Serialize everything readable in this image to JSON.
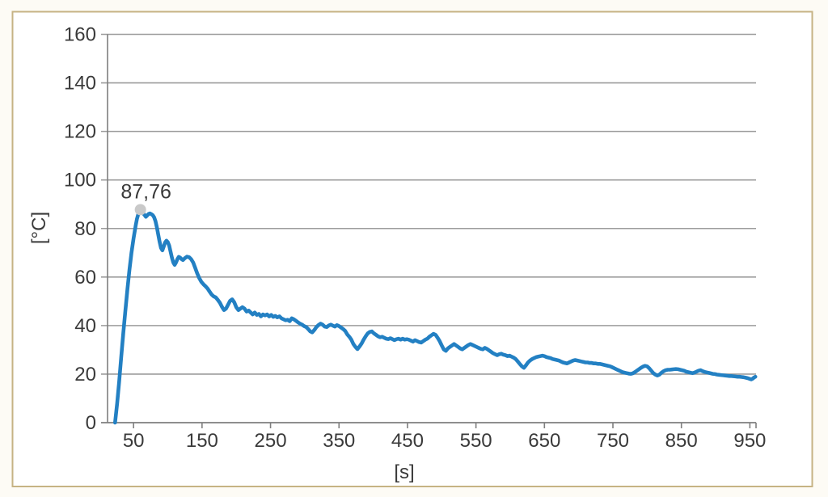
{
  "chart_data": {
    "type": "line",
    "title": "",
    "xlabel": "[s]",
    "ylabel": "[°C]",
    "xlim": [
      12,
      959
    ],
    "ylim": [
      0,
      160
    ],
    "x_ticks": [
      50,
      150,
      250,
      350,
      450,
      550,
      650,
      750,
      850,
      950
    ],
    "y_ticks": [
      0,
      20,
      40,
      60,
      80,
      100,
      120,
      140,
      160
    ],
    "grid": "horizontal",
    "legend": "none",
    "colors": {
      "line": "#2380C3",
      "marker": "#C9C9C9",
      "grid": "#9C9C9C",
      "axis": "#7F7F7F",
      "text": "#3A3A3A",
      "frame_border": "#C6B384",
      "plot_background": "#FFFFFF"
    },
    "annotation": {
      "text": "87,76",
      "t": 60,
      "value": 87.76
    },
    "series": [
      {
        "points": [
          [
            23,
            0
          ],
          [
            26,
            8
          ],
          [
            29,
            17
          ],
          [
            32,
            27
          ],
          [
            35,
            37
          ],
          [
            38,
            46
          ],
          [
            41,
            55
          ],
          [
            44,
            63
          ],
          [
            47,
            70
          ],
          [
            50,
            76
          ],
          [
            53,
            81
          ],
          [
            55,
            84
          ],
          [
            57,
            86
          ],
          [
            59,
            87.3
          ],
          [
            60,
            87.76
          ],
          [
            62,
            87.2
          ],
          [
            64,
            86.3
          ],
          [
            66,
            85.6
          ],
          [
            68,
            84.8
          ],
          [
            70,
            85.4
          ],
          [
            72,
            86
          ],
          [
            74,
            86.2
          ],
          [
            76,
            85.9
          ],
          [
            78,
            85.5
          ],
          [
            80,
            84.6
          ],
          [
            82,
            83
          ],
          [
            84,
            80.5
          ],
          [
            86,
            77.5
          ],
          [
            88,
            74.5
          ],
          [
            90,
            72
          ],
          [
            92,
            71
          ],
          [
            94,
            72.5
          ],
          [
            96,
            74.2
          ],
          [
            98,
            75
          ],
          [
            100,
            74.4
          ],
          [
            102,
            73
          ],
          [
            104,
            70.5
          ],
          [
            106,
            68
          ],
          [
            108,
            66
          ],
          [
            110,
            65
          ],
          [
            112,
            66
          ],
          [
            114,
            67.4
          ],
          [
            116,
            68.3
          ],
          [
            118,
            68
          ],
          [
            120,
            67.4
          ],
          [
            122,
            67
          ],
          [
            125,
            67.8
          ],
          [
            128,
            68.4
          ],
          [
            131,
            68.2
          ],
          [
            134,
            67.4
          ],
          [
            137,
            66
          ],
          [
            140,
            63.8
          ],
          [
            143,
            61.5
          ],
          [
            146,
            59.5
          ],
          [
            149,
            58
          ],
          [
            152,
            57
          ],
          [
            155,
            56.2
          ],
          [
            158,
            55.3
          ],
          [
            161,
            54
          ],
          [
            164,
            52.8
          ],
          [
            167,
            52
          ],
          [
            170,
            51.6
          ],
          [
            173,
            50.6
          ],
          [
            176,
            49.4
          ],
          [
            179,
            47.8
          ],
          [
            182,
            46.4
          ],
          [
            185,
            47
          ],
          [
            188,
            48.6
          ],
          [
            191,
            50.2
          ],
          [
            194,
            50.8
          ],
          [
            197,
            49.6
          ],
          [
            200,
            47.6
          ],
          [
            203,
            46.4
          ],
          [
            206,
            47
          ],
          [
            209,
            47.6
          ],
          [
            212,
            47
          ],
          [
            215,
            45.8
          ],
          [
            218,
            46.2
          ],
          [
            221,
            45.4
          ],
          [
            224,
            44.6
          ],
          [
            227,
            45.4
          ],
          [
            230,
            44.4
          ],
          [
            233,
            44.8
          ],
          [
            236,
            43.8
          ],
          [
            239,
            44.6
          ],
          [
            242,
            44.2
          ],
          [
            245,
            44.6
          ],
          [
            248,
            43.8
          ],
          [
            251,
            44.4
          ],
          [
            254,
            43.6
          ],
          [
            257,
            44
          ],
          [
            260,
            43.4
          ],
          [
            263,
            43.8
          ],
          [
            266,
            43
          ],
          [
            269,
            42.6
          ],
          [
            272,
            42.2
          ],
          [
            275,
            42.4
          ],
          [
            278,
            41.8
          ],
          [
            281,
            43
          ],
          [
            284,
            42.6
          ],
          [
            287,
            42
          ],
          [
            290,
            41.4
          ],
          [
            293,
            40.8
          ],
          [
            296,
            40.4
          ],
          [
            299,
            39.8
          ],
          [
            302,
            39.4
          ],
          [
            305,
            38.6
          ],
          [
            308,
            37.6
          ],
          [
            311,
            37.2
          ],
          [
            314,
            38.2
          ],
          [
            317,
            39.4
          ],
          [
            320,
            40.2
          ],
          [
            323,
            40.8
          ],
          [
            326,
            40.4
          ],
          [
            329,
            39.6
          ],
          [
            332,
            39.4
          ],
          [
            335,
            40
          ],
          [
            338,
            40.4
          ],
          [
            341,
            40
          ],
          [
            344,
            39.6
          ],
          [
            347,
            40.2
          ],
          [
            350,
            39.8
          ],
          [
            353,
            39.2
          ],
          [
            356,
            38.6
          ],
          [
            359,
            37.8
          ],
          [
            362,
            36.4
          ],
          [
            365,
            35.4
          ],
          [
            368,
            34.2
          ],
          [
            371,
            32.4
          ],
          [
            374,
            31.2
          ],
          [
            377,
            30.3
          ],
          [
            380,
            31.4
          ],
          [
            383,
            32.6
          ],
          [
            386,
            34.2
          ],
          [
            389,
            35.6
          ],
          [
            392,
            36.8
          ],
          [
            395,
            37.4
          ],
          [
            398,
            37.6
          ],
          [
            401,
            36.8
          ],
          [
            404,
            36.2
          ],
          [
            407,
            35.6
          ],
          [
            410,
            35.2
          ],
          [
            413,
            35.4
          ],
          [
            416,
            35
          ],
          [
            419,
            34.6
          ],
          [
            422,
            34.4
          ],
          [
            425,
            34.8
          ],
          [
            428,
            34.4
          ],
          [
            431,
            34
          ],
          [
            434,
            34.4
          ],
          [
            437,
            34.6
          ],
          [
            440,
            34.2
          ],
          [
            443,
            34.6
          ],
          [
            446,
            34.2
          ],
          [
            449,
            34.4
          ],
          [
            452,
            34.2
          ],
          [
            455,
            33.8
          ],
          [
            458,
            33.4
          ],
          [
            461,
            34
          ],
          [
            464,
            33.6
          ],
          [
            467,
            33.2
          ],
          [
            470,
            33
          ],
          [
            473,
            33.6
          ],
          [
            476,
            34.2
          ],
          [
            479,
            34.6
          ],
          [
            482,
            35.4
          ],
          [
            485,
            36
          ],
          [
            488,
            36.6
          ],
          [
            491,
            36.2
          ],
          [
            494,
            35
          ],
          [
            497,
            33.6
          ],
          [
            500,
            31.8
          ],
          [
            503,
            30.2
          ],
          [
            506,
            29.6
          ],
          [
            509,
            30.6
          ],
          [
            512,
            31.2
          ],
          [
            515,
            31.8
          ],
          [
            518,
            32.4
          ],
          [
            521,
            31.8
          ],
          [
            524,
            31.2
          ],
          [
            527,
            30.6
          ],
          [
            530,
            30.2
          ],
          [
            533,
            30.8
          ],
          [
            536,
            31.4
          ],
          [
            539,
            32
          ],
          [
            542,
            32.4
          ],
          [
            545,
            32
          ],
          [
            548,
            31.6
          ],
          [
            551,
            31.2
          ],
          [
            554,
            30.8
          ],
          [
            557,
            30.4
          ],
          [
            560,
            30.2
          ],
          [
            563,
            30.8
          ],
          [
            566,
            30.4
          ],
          [
            569,
            29.8
          ],
          [
            572,
            29.2
          ],
          [
            575,
            28.6
          ],
          [
            578,
            28.2
          ],
          [
            581,
            27.8
          ],
          [
            584,
            28.2
          ],
          [
            587,
            28.4
          ],
          [
            590,
            28
          ],
          [
            593,
            27.8
          ],
          [
            596,
            27.4
          ],
          [
            599,
            27.6
          ],
          [
            602,
            27.2
          ],
          [
            605,
            26.8
          ],
          [
            608,
            26.2
          ],
          [
            611,
            25.2
          ],
          [
            614,
            24.2
          ],
          [
            617,
            23.2
          ],
          [
            620,
            22.6
          ],
          [
            623,
            23.6
          ],
          [
            626,
            24.8
          ],
          [
            629,
            25.6
          ],
          [
            632,
            26.2
          ],
          [
            635,
            26.6
          ],
          [
            638,
            27
          ],
          [
            641,
            27.2
          ],
          [
            644,
            27.4
          ],
          [
            647,
            27.6
          ],
          [
            650,
            27.4
          ],
          [
            653,
            27
          ],
          [
            656,
            26.8
          ],
          [
            659,
            26.6
          ],
          [
            662,
            26.2
          ],
          [
            665,
            26
          ],
          [
            668,
            25.8
          ],
          [
            671,
            25.6
          ],
          [
            674,
            25.2
          ],
          [
            677,
            24.8
          ],
          [
            680,
            24.6
          ],
          [
            683,
            24.4
          ],
          [
            686,
            24.8
          ],
          [
            689,
            25.2
          ],
          [
            692,
            25.6
          ],
          [
            695,
            25.8
          ],
          [
            698,
            25.6
          ],
          [
            701,
            25.4
          ],
          [
            704,
            25.2
          ],
          [
            707,
            25
          ],
          [
            710,
            24.8
          ],
          [
            713,
            24.8
          ],
          [
            716,
            24.6
          ],
          [
            719,
            24.6
          ],
          [
            722,
            24.4
          ],
          [
            725,
            24.4
          ],
          [
            728,
            24.2
          ],
          [
            731,
            24.2
          ],
          [
            734,
            24
          ],
          [
            737,
            23.8
          ],
          [
            740,
            23.6
          ],
          [
            743,
            23.4
          ],
          [
            746,
            23.2
          ],
          [
            749,
            22.8
          ],
          [
            752,
            22.4
          ],
          [
            755,
            22
          ],
          [
            758,
            21.6
          ],
          [
            761,
            21.2
          ],
          [
            764,
            20.8
          ],
          [
            767,
            20.6
          ],
          [
            770,
            20.4
          ],
          [
            773,
            20.2
          ],
          [
            776,
            20.1
          ],
          [
            779,
            20.3
          ],
          [
            782,
            20.8
          ],
          [
            785,
            21.4
          ],
          [
            788,
            22
          ],
          [
            791,
            22.6
          ],
          [
            794,
            23.1
          ],
          [
            797,
            23.4
          ],
          [
            800,
            23.2
          ],
          [
            803,
            22.4
          ],
          [
            806,
            21.4
          ],
          [
            809,
            20.4
          ],
          [
            812,
            19.8
          ],
          [
            815,
            19.4
          ],
          [
            818,
            19.8
          ],
          [
            821,
            20.6
          ],
          [
            824,
            21.2
          ],
          [
            827,
            21.6
          ],
          [
            830,
            21.8
          ],
          [
            833,
            21.8
          ],
          [
            836,
            21.9
          ],
          [
            839,
            22
          ],
          [
            842,
            22.1
          ],
          [
            845,
            22
          ],
          [
            848,
            21.8
          ],
          [
            851,
            21.6
          ],
          [
            854,
            21.4
          ],
          [
            857,
            21
          ],
          [
            860,
            20.8
          ],
          [
            863,
            20.6
          ],
          [
            866,
            20.4
          ],
          [
            869,
            20.6
          ],
          [
            872,
            21
          ],
          [
            875,
            21.4
          ],
          [
            878,
            21.6
          ],
          [
            881,
            21.2
          ],
          [
            884,
            20.9
          ],
          [
            887,
            20.7
          ],
          [
            890,
            20.5
          ],
          [
            893,
            20.3
          ],
          [
            896,
            20.1
          ],
          [
            899,
            20
          ],
          [
            902,
            19.8
          ],
          [
            905,
            19.7
          ],
          [
            908,
            19.6
          ],
          [
            911,
            19.5
          ],
          [
            914,
            19.4
          ],
          [
            917,
            19.3
          ],
          [
            920,
            19.2
          ],
          [
            923,
            19.2
          ],
          [
            926,
            19.1
          ],
          [
            929,
            19
          ],
          [
            932,
            18.9
          ],
          [
            935,
            18.9
          ],
          [
            938,
            18.8
          ],
          [
            941,
            18.7
          ],
          [
            944,
            18.5
          ],
          [
            947,
            18.3
          ],
          [
            950,
            18
          ],
          [
            952,
            17.8
          ],
          [
            954,
            18.1
          ],
          [
            956,
            18.6
          ],
          [
            958,
            18.9
          ]
        ]
      }
    ]
  }
}
